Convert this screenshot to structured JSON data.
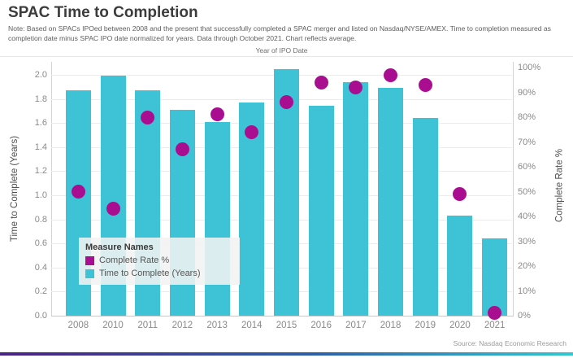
{
  "title": "SPAC Time to Completion",
  "note": {
    "lines": [
      "Note: Based on SPACs IPOed between 2008 and the present that successfully completed a SPAC merger and listed on Nasdaq/NYSE/AMEX. Time to completion measured as",
      "completion date minus SPAC IPO date normalized for years. Data through October 2021. Chart reflects average."
    ]
  },
  "source": "Source: Nasdaq Economic Research",
  "legend": {
    "title": "Measure Names",
    "items": [
      {
        "label": "Complete Rate %",
        "color": "#A90D90"
      },
      {
        "label": "Time to Complete (Years)",
        "color": "#3EC2D6"
      }
    ]
  },
  "colors": {
    "bar": "#3EC2D6",
    "dot": "#A90D90",
    "gradient_left": "#4B2287",
    "gradient_mid": "#2E5FA9",
    "gradient_right": "#35C7CF"
  },
  "chart_data": {
    "type": "bar",
    "subtype": "dual-axis bar with scatter overlay",
    "top_axis_label": "Year of IPO Date",
    "categories": [
      "2008",
      "2010",
      "2011",
      "2012",
      "2013",
      "2014",
      "2015",
      "2016",
      "2017",
      "2018",
      "2019",
      "2020",
      "2021"
    ],
    "series": [
      {
        "name": "Time to Complete (Years)",
        "mark": "bar",
        "axis": "left",
        "color": "#3EC2D6",
        "values": [
          1.87,
          1.99,
          1.87,
          1.71,
          1.61,
          1.77,
          2.05,
          1.74,
          1.94,
          1.89,
          1.64,
          0.83,
          0.64
        ]
      },
      {
        "name": "Complete Rate %",
        "mark": "scatter",
        "axis": "right",
        "color": "#A90D90",
        "values": [
          50,
          43,
          80,
          67,
          81,
          74,
          86,
          94,
          92,
          97,
          93,
          49,
          1
        ]
      }
    ],
    "left_axis": {
      "label": "Time to Complete (Years)",
      "range": [
        0.0,
        2.11
      ],
      "ticks": [
        "0.0",
        "0.2",
        "0.4",
        "0.6",
        "0.8",
        "1.0",
        "1.2",
        "1.4",
        "1.6",
        "1.8",
        "2.0"
      ]
    },
    "right_axis": {
      "label": "Complete Rate %",
      "range": [
        0,
        105
      ],
      "ticks": [
        "0%",
        "10%",
        "20%",
        "30%",
        "40%",
        "50%",
        "60%",
        "70%",
        "80%",
        "90%",
        "100%"
      ]
    },
    "grid": true,
    "legend_position": "inside-bottom-left"
  }
}
